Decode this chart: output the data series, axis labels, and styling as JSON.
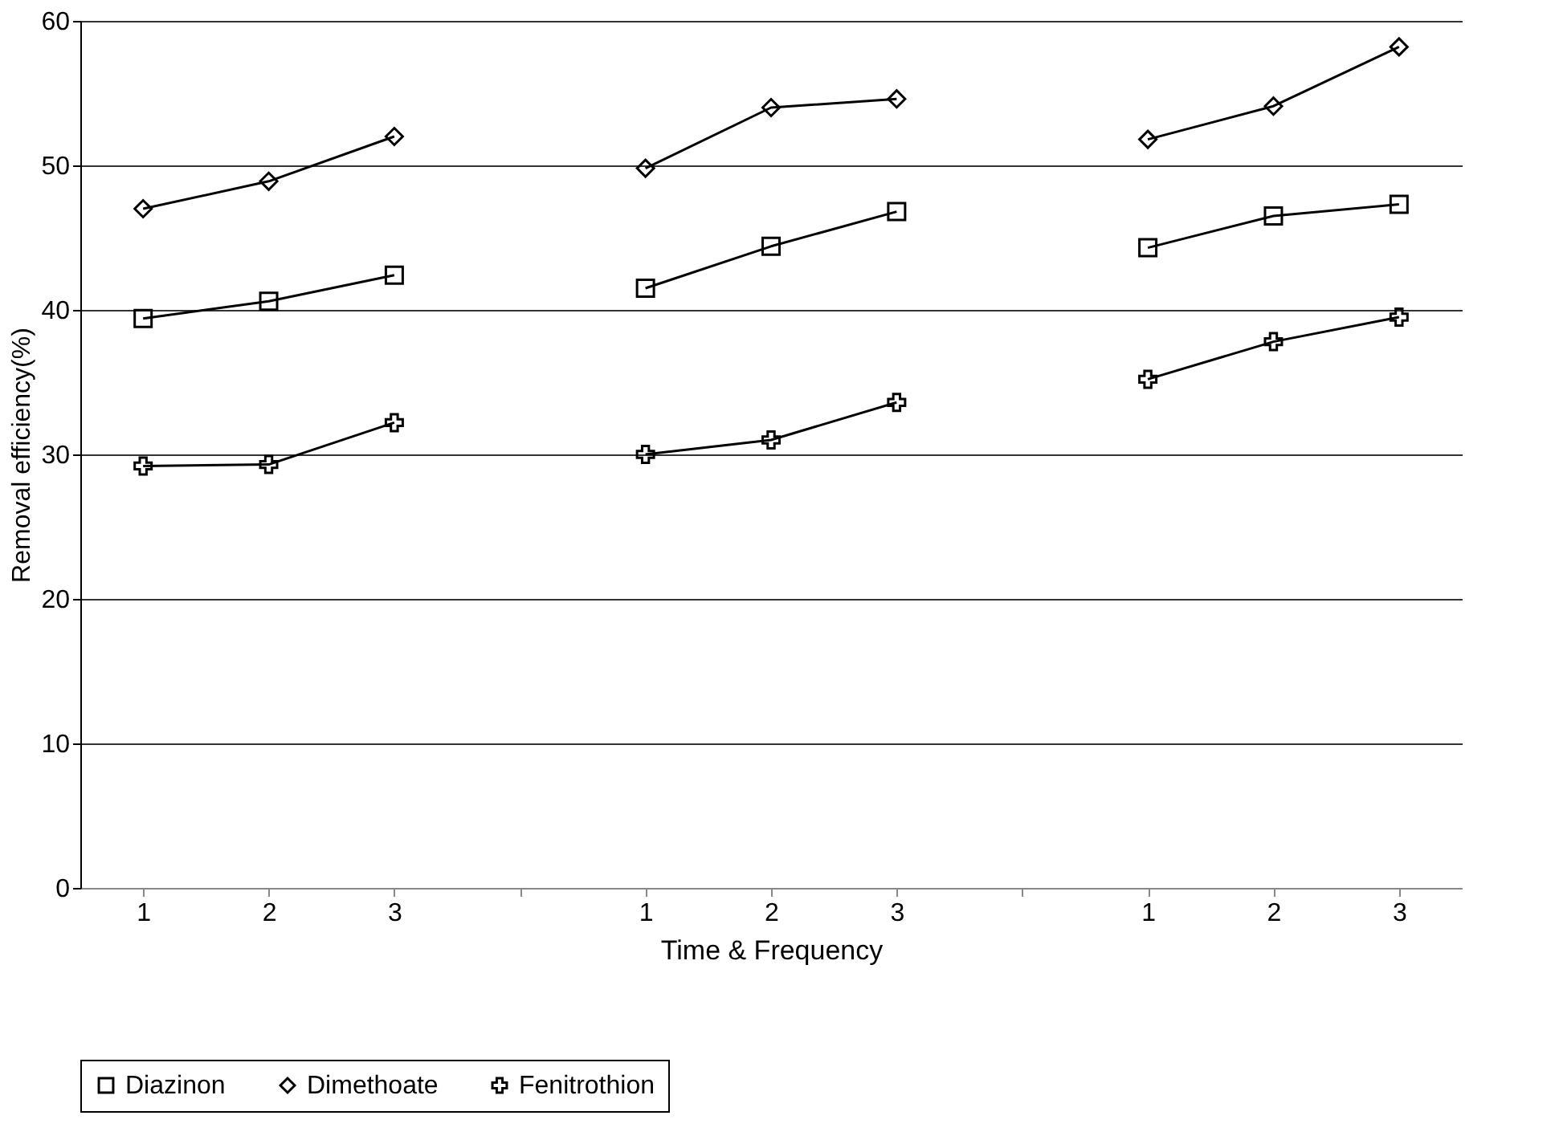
{
  "chart_data": {
    "type": "line",
    "xlabel": "Time & Frequency",
    "ylabel": "Removal efficiency(%)",
    "categories": [
      "1",
      "2",
      "3",
      null,
      "1",
      "2",
      "3",
      null,
      "1",
      "2",
      "3"
    ],
    "ylim": [
      0,
      60
    ],
    "yticks": [
      0,
      10,
      20,
      30,
      40,
      50,
      60
    ],
    "grid": "y",
    "legend": "bottom",
    "marker": "square",
    "series": [
      {
        "name": "Diazinon",
        "color": "#000000",
        "marker": "square",
        "values": [
          39.4,
          40.6,
          42.4,
          null,
          41.5,
          44.4,
          46.8,
          null,
          44.3,
          46.5,
          47.3
        ]
      },
      {
        "name": "Dimethoate",
        "color": "#000000",
        "marker": "diamond",
        "values": [
          47.0,
          48.9,
          52.0,
          null,
          49.8,
          54.0,
          54.6,
          null,
          51.8,
          54.1,
          58.2
        ]
      },
      {
        "name": "Fenitrothion",
        "color": "#000000",
        "marker": "cross",
        "values": [
          29.2,
          29.3,
          32.2,
          null,
          30.0,
          31.0,
          33.6,
          null,
          35.2,
          37.8,
          39.5
        ]
      }
    ]
  }
}
